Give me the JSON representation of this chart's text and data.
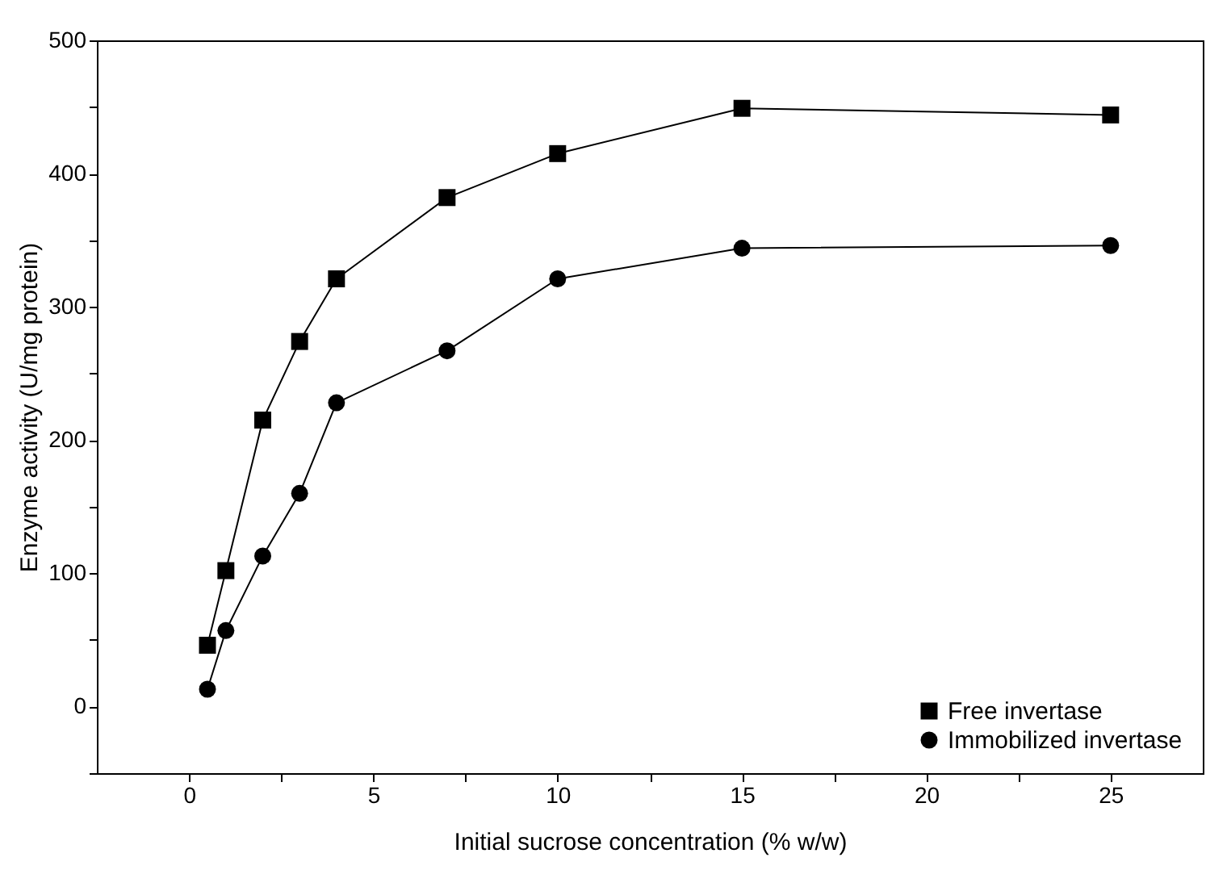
{
  "chart_data": {
    "type": "line",
    "xlabel": "Initial sucrose concentration (% w/w)",
    "ylabel": "Enzyme activity (U/mg protein)",
    "x": [
      0.5,
      1,
      2,
      3,
      4,
      7,
      10,
      15,
      25
    ],
    "series": [
      {
        "name": "Free invertase",
        "color": "#000000",
        "marker": "square",
        "values": [
          46,
          102,
          215,
          274,
          321,
          382,
          415,
          449,
          444
        ]
      },
      {
        "name": "Immobilized invertase",
        "color": "#000000",
        "marker": "circle",
        "values": [
          13,
          57,
          113,
          160,
          228,
          267,
          321,
          344,
          346
        ]
      }
    ],
    "xlim": [
      -2.5,
      27.5
    ],
    "xticks": [
      0,
      {
        "value": 2.5,
        "label": null
      },
      5,
      {
        "value": 7.5,
        "label": null
      },
      10,
      {
        "value": 12.5,
        "label": null
      },
      15,
      {
        "value": 17.5,
        "label": null
      },
      20,
      {
        "value": 22.5,
        "label": null
      },
      25
    ],
    "ylim": [
      -50,
      500
    ],
    "yticks": [
      {
        "value": -50,
        "label": null
      },
      0,
      {
        "value": 50,
        "label": null
      },
      100,
      {
        "value": 150,
        "label": null
      },
      200,
      {
        "value": 250,
        "label": null
      },
      300,
      {
        "value": 350,
        "label": null
      },
      400,
      {
        "value": 450,
        "label": null
      },
      500
    ],
    "grid": false,
    "legend": "bottom right",
    "line_style": "solid"
  }
}
